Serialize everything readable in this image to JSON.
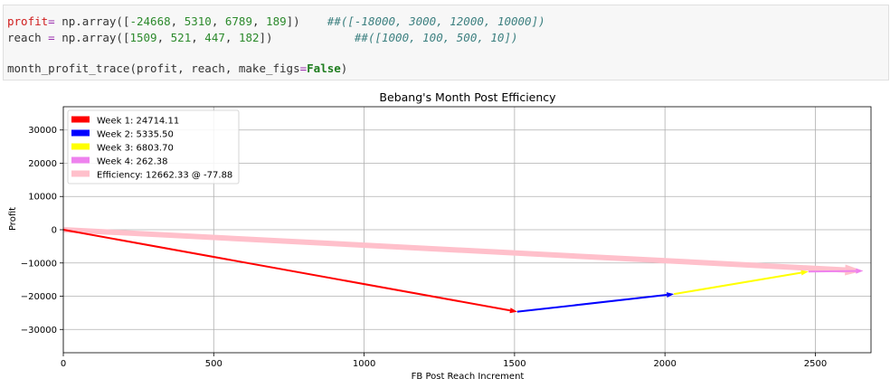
{
  "code": {
    "line1": {
      "var": "profit",
      "eq": "= ",
      "fn": "np.array([",
      "nums": [
        "-24668",
        "5310",
        "6789",
        "189"
      ],
      "close": "])",
      "comment": "##([-18000, 3000, 12000, 10000])"
    },
    "line2": {
      "var": "reach",
      "eq": " = ",
      "fn": "np.array([",
      "nums": [
        "1509",
        "521",
        "447",
        "182"
      ],
      "close": "])",
      "comment": "##([1000, 100, 500, 10])"
    },
    "line3": {
      "fn": "month_profit_trace(profit, reach, make_figs",
      "eq": "=",
      "kw": "False",
      "close": ")"
    }
  },
  "chart_data": {
    "type": "line",
    "title": "Bebang's Month Post Efficiency",
    "xlabel": "FB Post Reach Increment",
    "ylabel": "Profit",
    "xlim": [
      0,
      2685
    ],
    "ylim": [
      -37000,
      37000
    ],
    "xticks": [
      0,
      500,
      1000,
      1500,
      2000,
      2500
    ],
    "yticks": [
      -30000,
      -20000,
      -10000,
      0,
      10000,
      20000,
      30000
    ],
    "grid": true,
    "legend_position": "upper-left",
    "arrows": [
      {
        "name": "Week 1: 24714.11",
        "color": "#ff0000",
        "start": [
          0,
          0
        ],
        "end": [
          1509,
          -24668
        ]
      },
      {
        "name": "Week 2: 5335.50",
        "color": "#0000ff",
        "start": [
          1509,
          -24668
        ],
        "end": [
          2030,
          -19358
        ]
      },
      {
        "name": "Week 3: 6803.70",
        "color": "#ffff00",
        "start": [
          2030,
          -19358
        ],
        "end": [
          2477,
          -12569
        ]
      },
      {
        "name": "Week 4: 262.38",
        "color": "#ee82ee",
        "start": [
          2477,
          -12569
        ],
        "end": [
          2659,
          -12380
        ]
      },
      {
        "name": "Efficiency: 12662.33 @ -77.88",
        "color": "#ffc0cb",
        "start": [
          0,
          0
        ],
        "end": [
          2659,
          -12380
        ]
      }
    ]
  }
}
